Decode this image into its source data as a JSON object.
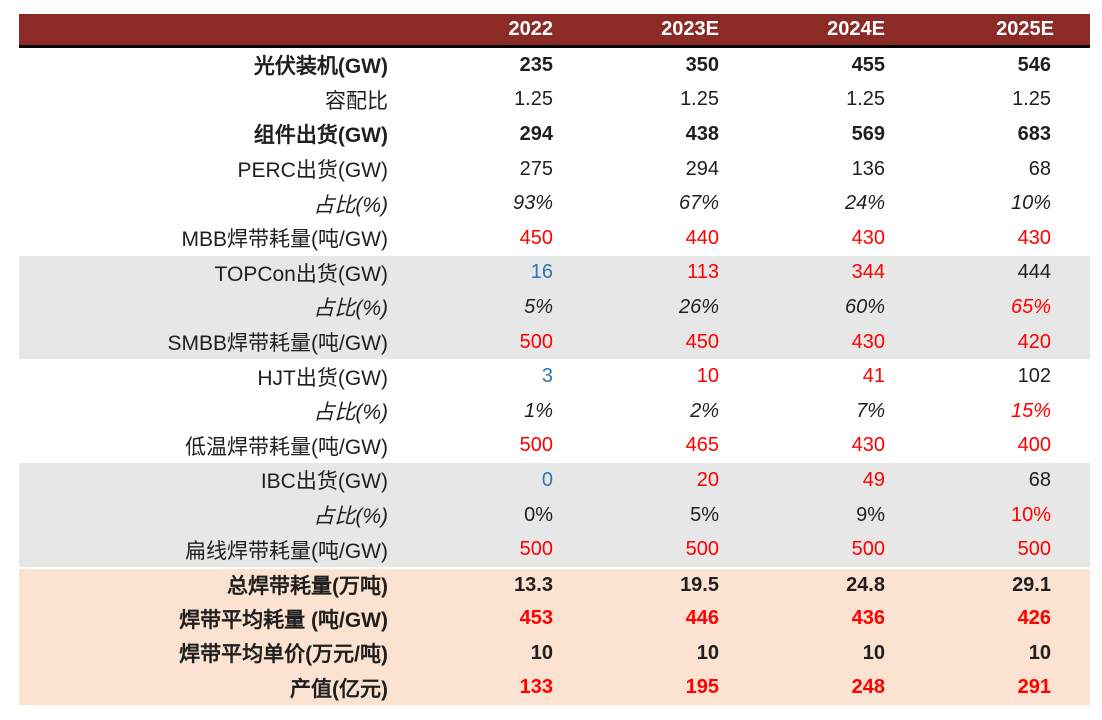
{
  "palette": {
    "black": "#1F1F1F",
    "red": "#FF0000",
    "blue": "#2E75B6",
    "header_bg": "#8C2A26",
    "header_text": "#FFFFFF",
    "row_white": "#FFFFFF",
    "row_gray": "#E7E7E7",
    "row_peach": "#FCE2D0"
  },
  "chart_data": {
    "type": "table",
    "columns": [
      "",
      "2022",
      "2023E",
      "2024E",
      "2025E"
    ],
    "rows": [
      {
        "label": "光伏装机(GW)",
        "bg": "white",
        "label_bold": true,
        "label_italic": false,
        "values_bold": true,
        "values_italic": false,
        "values": [
          "235",
          "350",
          "455",
          "546"
        ],
        "value_colors": [
          "black",
          "black",
          "black",
          "black"
        ]
      },
      {
        "label": "容配比",
        "bg": "white",
        "label_bold": false,
        "label_italic": false,
        "values_bold": false,
        "values_italic": false,
        "values": [
          "1.25",
          "1.25",
          "1.25",
          "1.25"
        ],
        "value_colors": [
          "black",
          "black",
          "black",
          "black"
        ]
      },
      {
        "label": "组件出货(GW)",
        "bg": "white",
        "label_bold": true,
        "label_italic": false,
        "values_bold": true,
        "values_italic": false,
        "values": [
          "294",
          "438",
          "569",
          "683"
        ],
        "value_colors": [
          "black",
          "black",
          "black",
          "black"
        ]
      },
      {
        "label": "PERC出货(GW)",
        "bg": "white",
        "label_bold": false,
        "label_italic": false,
        "values_bold": false,
        "values_italic": false,
        "values": [
          "275",
          "294",
          "136",
          "68"
        ],
        "value_colors": [
          "black",
          "black",
          "black",
          "black"
        ]
      },
      {
        "label": "占比(%)",
        "bg": "white",
        "label_bold": false,
        "label_italic": true,
        "values_bold": false,
        "values_italic": true,
        "values": [
          "93%",
          "67%",
          "24%",
          "10%"
        ],
        "value_colors": [
          "black",
          "black",
          "black",
          "black"
        ]
      },
      {
        "label": "MBB焊带耗量(吨/GW)",
        "bg": "white",
        "label_bold": false,
        "label_italic": false,
        "values_bold": false,
        "values_italic": false,
        "values": [
          "450",
          "440",
          "430",
          "430"
        ],
        "value_colors": [
          "red",
          "red",
          "red",
          "red"
        ]
      },
      {
        "label": "TOPCon出货(GW)",
        "bg": "gray",
        "label_bold": false,
        "label_italic": false,
        "values_bold": false,
        "values_italic": false,
        "values": [
          "16",
          "113",
          "344",
          "444"
        ],
        "value_colors": [
          "blue",
          "red",
          "red",
          "black"
        ]
      },
      {
        "label": "占比(%)",
        "bg": "gray",
        "label_bold": false,
        "label_italic": true,
        "values_bold": false,
        "values_italic": true,
        "values": [
          "5%",
          "26%",
          "60%",
          "65%"
        ],
        "value_colors": [
          "black",
          "black",
          "black",
          "red"
        ]
      },
      {
        "label": "SMBB焊带耗量(吨/GW)",
        "bg": "gray",
        "label_bold": false,
        "label_italic": false,
        "values_bold": false,
        "values_italic": false,
        "values": [
          "500",
          "450",
          "430",
          "420"
        ],
        "value_colors": [
          "red",
          "red",
          "red",
          "red"
        ]
      },
      {
        "label": "HJT出货(GW)",
        "bg": "white",
        "label_bold": false,
        "label_italic": false,
        "values_bold": false,
        "values_italic": false,
        "values": [
          "3",
          "10",
          "41",
          "102"
        ],
        "value_colors": [
          "blue",
          "red",
          "red",
          "black"
        ]
      },
      {
        "label": "占比(%)",
        "bg": "white",
        "label_bold": false,
        "label_italic": true,
        "values_bold": false,
        "values_italic": true,
        "values": [
          "1%",
          "2%",
          "7%",
          "15%"
        ],
        "value_colors": [
          "black",
          "black",
          "black",
          "red"
        ]
      },
      {
        "label": "低温焊带耗量(吨/GW)",
        "bg": "white",
        "label_bold": false,
        "label_italic": false,
        "values_bold": false,
        "values_italic": false,
        "values": [
          "500",
          "465",
          "430",
          "400"
        ],
        "value_colors": [
          "red",
          "red",
          "red",
          "red"
        ]
      },
      {
        "label": "IBC出货(GW)",
        "bg": "gray",
        "label_bold": false,
        "label_italic": false,
        "values_bold": false,
        "values_italic": false,
        "values": [
          "0",
          "20",
          "49",
          "68"
        ],
        "value_colors": [
          "blue",
          "red",
          "red",
          "black"
        ]
      },
      {
        "label": "占比(%)",
        "bg": "gray",
        "label_bold": false,
        "label_italic": true,
        "values_bold": false,
        "values_italic": false,
        "values": [
          "0%",
          "5%",
          "9%",
          "10%"
        ],
        "value_colors": [
          "black",
          "black",
          "black",
          "red"
        ]
      },
      {
        "label": "扁线焊带耗量(吨/GW)",
        "bg": "gray",
        "label_bold": false,
        "label_italic": false,
        "values_bold": false,
        "values_italic": false,
        "values": [
          "500",
          "500",
          "500",
          "500"
        ],
        "value_colors": [
          "red",
          "red",
          "red",
          "red"
        ]
      },
      {
        "label": "总焊带耗量(万吨)",
        "bg": "peach",
        "label_bold": true,
        "label_italic": false,
        "values_bold": true,
        "values_italic": false,
        "values": [
          "13.3",
          "19.5",
          "24.8",
          "29.1"
        ],
        "value_colors": [
          "black",
          "black",
          "black",
          "black"
        ],
        "sep_top": true
      },
      {
        "label": "焊带平均耗量 (吨/GW)",
        "bg": "peach",
        "label_bold": true,
        "label_italic": false,
        "values_bold": true,
        "values_italic": false,
        "values": [
          "453",
          "446",
          "436",
          "426"
        ],
        "value_colors": [
          "red",
          "red",
          "red",
          "red"
        ]
      },
      {
        "label": "焊带平均单价(万元/吨)",
        "bg": "peach",
        "label_bold": true,
        "label_italic": false,
        "values_bold": true,
        "values_italic": false,
        "values": [
          "10",
          "10",
          "10",
          "10"
        ],
        "value_colors": [
          "black",
          "black",
          "black",
          "black"
        ]
      },
      {
        "label": "产值(亿元)",
        "bg": "peach",
        "label_bold": true,
        "label_italic": false,
        "values_bold": true,
        "values_italic": false,
        "values": [
          "133",
          "195",
          "248",
          "291"
        ],
        "value_colors": [
          "red",
          "red",
          "red",
          "red"
        ]
      }
    ]
  }
}
